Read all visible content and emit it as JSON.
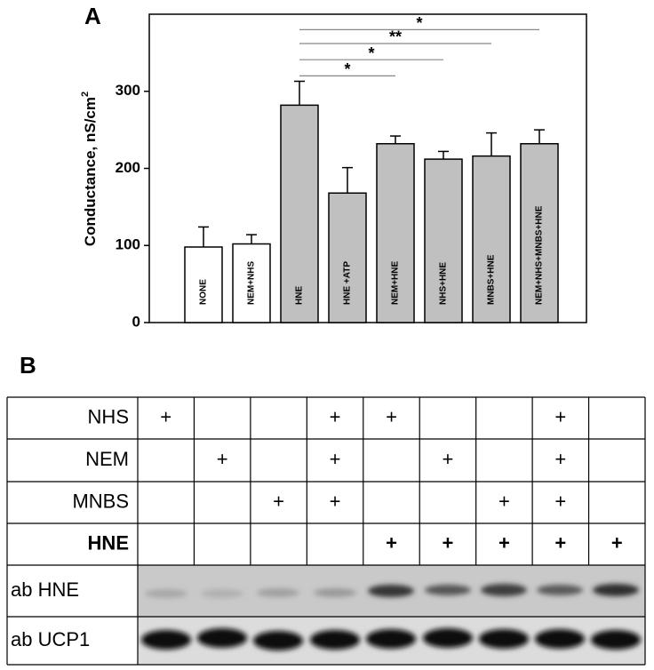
{
  "chart_data": {
    "type": "bar",
    "panel_label": "A",
    "categories": [
      "NONE",
      "NEM+NHS",
      "HNE",
      "HNE +ATP",
      "NEM+HNE",
      "NHS+HNE",
      "MNBS+HNE",
      "NEM+NHS+MNBS+HNE"
    ],
    "values": [
      98,
      102,
      282,
      168,
      232,
      212,
      216,
      232
    ],
    "errors": [
      26,
      12,
      31,
      33,
      10,
      10,
      30,
      18
    ],
    "colors": [
      "#ffffff",
      "#ffffff",
      "#c0c0c0",
      "#c0c0c0",
      "#c0c0c0",
      "#c0c0c0",
      "#c0c0c0",
      "#c0c0c0"
    ],
    "ylabel": "Conductance, nS/cm",
    "ylabel_sup": "2",
    "ylim": [
      0,
      400
    ],
    "yticks": [
      0,
      100,
      200,
      300
    ],
    "annotations": [
      {
        "from": 2,
        "to": 4,
        "y": 320,
        "label": "*"
      },
      {
        "from": 2,
        "to": 5,
        "y": 341,
        "label": "*"
      },
      {
        "from": 2,
        "to": 6,
        "y": 362,
        "label": "**"
      },
      {
        "from": 2,
        "to": 7,
        "y": 380,
        "label": "*"
      }
    ]
  },
  "table": {
    "panel_label": "B",
    "rows": [
      {
        "label": "NHS",
        "bold": false,
        "cells": [
          "+",
          null,
          null,
          "+",
          "+",
          null,
          null,
          "+",
          null
        ]
      },
      {
        "label": "NEM",
        "bold": false,
        "cells": [
          null,
          "+",
          null,
          "+",
          null,
          "+",
          null,
          "+",
          null
        ]
      },
      {
        "label": "MNBS",
        "bold": false,
        "cells": [
          null,
          null,
          "+",
          "+",
          null,
          null,
          "+",
          "+",
          null
        ]
      },
      {
        "label": "HNE",
        "bold": true,
        "cells": [
          null,
          null,
          null,
          null,
          "+",
          "+",
          "+",
          "+",
          "+"
        ]
      }
    ],
    "blots": [
      "ab HNE",
      "ab UCP1"
    ]
  }
}
